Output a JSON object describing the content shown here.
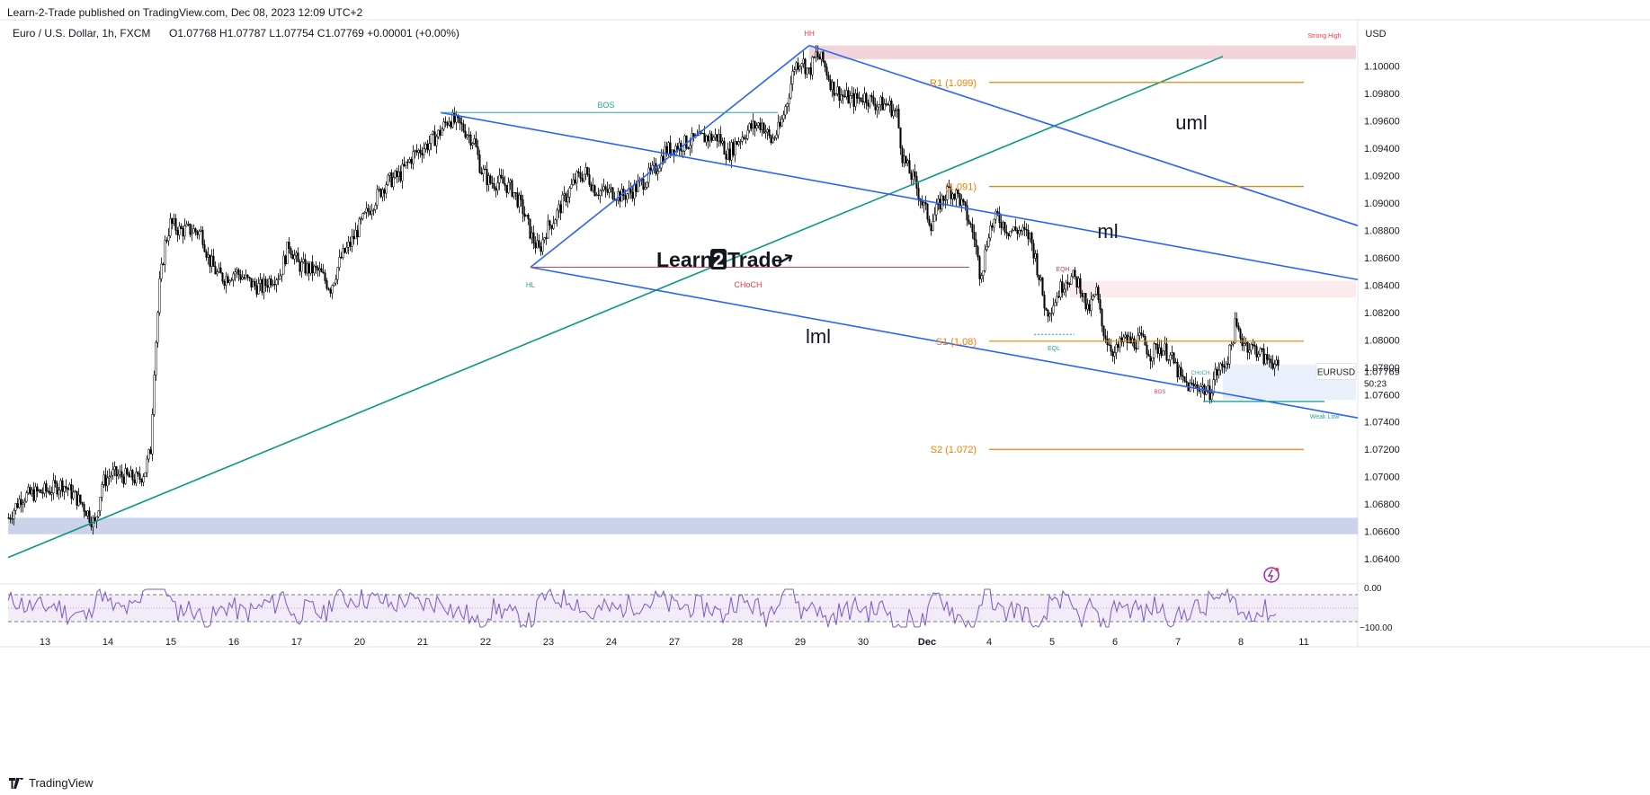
{
  "header": {
    "published": "Learn-2-Trade published on TradingView.com, Dec 08, 2023 12:09 UTC+2",
    "symbol_desc": "Euro / U.S. Dollar, 1h, FXCM",
    "ohlc": "O1.07768 H1.07787 L1.07754 C1.07769 +0.00001 (+0.00%)",
    "currency": "USD"
  },
  "footer": {
    "brand": "TradingView",
    "brand_icon": "tradingview-logo-icon"
  },
  "watermark": {
    "text_left": "Learn",
    "digit": "2",
    "text_right": "Trade",
    "arrow_icon": "arrow-icon"
  },
  "chart_data": {
    "type": "candlestick",
    "symbol": "EURUSD",
    "timeframe": "1h",
    "last_price": "1.07769",
    "countdown": "50:23",
    "y_range": [
      1.0625,
      1.102
    ],
    "y_ticks": [
      "1.10000",
      "1.09800",
      "1.09600",
      "1.09400",
      "1.09200",
      "1.09000",
      "1.08800",
      "1.08600",
      "1.08400",
      "1.08200",
      "1.08000",
      "1.07800",
      "1.07600",
      "1.07400",
      "1.07200",
      "1.07000",
      "1.06800",
      "1.06600",
      "1.06400"
    ],
    "x_ticks": [
      "13",
      "14",
      "15",
      "16",
      "17",
      "20",
      "21",
      "22",
      "23",
      "24",
      "27",
      "28",
      "29",
      "30",
      "Dec",
      "4",
      "5",
      "6",
      "7",
      "8",
      "11"
    ],
    "price_path": [
      [
        0,
        1.067
      ],
      [
        14,
        1.0685
      ],
      [
        30,
        1.0688
      ],
      [
        45,
        1.069
      ],
      [
        60,
        1.0695
      ],
      [
        82,
        1.068
      ],
      [
        96,
        1.0665
      ],
      [
        104,
        1.0695
      ],
      [
        114,
        1.0702
      ],
      [
        130,
        1.07
      ],
      [
        145,
        1.0698
      ],
      [
        152,
        1.0705
      ],
      [
        158,
        1.072
      ],
      [
        162,
        1.078
      ],
      [
        168,
        1.084
      ],
      [
        174,
        1.087
      ],
      [
        180,
        1.0885
      ],
      [
        190,
        1.088
      ],
      [
        205,
        1.088
      ],
      [
        215,
        1.0878
      ],
      [
        222,
        1.086
      ],
      [
        232,
        1.0848
      ],
      [
        240,
        1.0845
      ],
      [
        252,
        1.085
      ],
      [
        262,
        1.0845
      ],
      [
        272,
        1.084
      ],
      [
        282,
        1.0838
      ],
      [
        292,
        1.0845
      ],
      [
        302,
        1.0848
      ],
      [
        312,
        1.087
      ],
      [
        322,
        1.0855
      ],
      [
        332,
        1.0852
      ],
      [
        345,
        1.085
      ],
      [
        358,
        1.0838
      ],
      [
        370,
        1.086
      ],
      [
        380,
        1.087
      ],
      [
        392,
        1.0885
      ],
      [
        405,
        1.09
      ],
      [
        420,
        1.0915
      ],
      [
        435,
        1.092
      ],
      [
        450,
        1.0935
      ],
      [
        465,
        1.0942
      ],
      [
        478,
        1.095
      ],
      [
        490,
        1.0962
      ],
      [
        505,
        1.0955
      ],
      [
        518,
        1.0945
      ],
      [
        525,
        1.0925
      ],
      [
        535,
        1.0915
      ],
      [
        548,
        1.0915
      ],
      [
        560,
        1.091
      ],
      [
        572,
        1.0895
      ],
      [
        582,
        1.0875
      ],
      [
        590,
        1.0865
      ],
      [
        598,
        1.088
      ],
      [
        608,
        1.089
      ],
      [
        620,
        1.0905
      ],
      [
        632,
        1.0918
      ],
      [
        642,
        1.0922
      ],
      [
        652,
        1.091
      ],
      [
        662,
        1.0908
      ],
      [
        672,
        1.0908
      ],
      [
        682,
        1.0905
      ],
      [
        692,
        1.0908
      ],
      [
        705,
        1.0915
      ],
      [
        720,
        1.0925
      ],
      [
        730,
        1.0938
      ],
      [
        745,
        1.0942
      ],
      [
        760,
        1.0945
      ],
      [
        775,
        1.0948
      ],
      [
        790,
        1.0948
      ],
      [
        800,
        1.0935
      ],
      [
        810,
        1.0945
      ],
      [
        825,
        1.0955
      ],
      [
        838,
        1.0958
      ],
      [
        848,
        1.0945
      ],
      [
        858,
        1.0955
      ],
      [
        866,
        1.0975
      ],
      [
        874,
        1.1
      ],
      [
        882,
        1.1005
      ],
      [
        890,
        1.0995
      ],
      [
        898,
        1.1008
      ],
      [
        906,
        1.1003
      ],
      [
        916,
        1.0985
      ],
      [
        928,
        1.0978
      ],
      [
        940,
        1.0975
      ],
      [
        952,
        1.0978
      ],
      [
        965,
        1.0972
      ],
      [
        978,
        1.0972
      ],
      [
        988,
        1.0965
      ],
      [
        994,
        1.0935
      ],
      [
        1000,
        1.0925
      ],
      [
        1008,
        1.0915
      ],
      [
        1016,
        1.09
      ],
      [
        1026,
        1.0885
      ],
      [
        1036,
        1.09
      ],
      [
        1046,
        1.091
      ],
      [
        1056,
        1.0905
      ],
      [
        1066,
        1.089
      ],
      [
        1074,
        1.0875
      ],
      [
        1080,
        1.085
      ],
      [
        1084,
        1.0855
      ],
      [
        1090,
        1.088
      ],
      [
        1100,
        1.089
      ],
      [
        1112,
        1.088
      ],
      [
        1124,
        1.088
      ],
      [
        1136,
        1.0875
      ],
      [
        1142,
        1.086
      ],
      [
        1148,
        1.084
      ],
      [
        1154,
        1.082
      ],
      [
        1160,
        1.0825
      ],
      [
        1168,
        1.0835
      ],
      [
        1176,
        1.0845
      ],
      [
        1184,
        1.0845
      ],
      [
        1192,
        1.084
      ],
      [
        1200,
        1.082
      ],
      [
        1210,
        1.0835
      ],
      [
        1216,
        1.081
      ],
      [
        1222,
        1.08
      ],
      [
        1230,
        1.079
      ],
      [
        1240,
        1.08
      ],
      [
        1250,
        1.0798
      ],
      [
        1260,
        1.08
      ],
      [
        1270,
        1.079
      ],
      [
        1280,
        1.0795
      ],
      [
        1290,
        1.079
      ],
      [
        1298,
        1.078
      ],
      [
        1305,
        1.077
      ],
      [
        1315,
        1.0765
      ],
      [
        1325,
        1.0767
      ],
      [
        1335,
        1.076
      ],
      [
        1342,
        1.0775
      ],
      [
        1350,
        1.078
      ],
      [
        1358,
        1.079
      ],
      [
        1364,
        1.081
      ],
      [
        1372,
        1.08
      ],
      [
        1380,
        1.0795
      ],
      [
        1390,
        1.0792
      ],
      [
        1398,
        1.0785
      ],
      [
        1404,
        1.0787
      ],
      [
        1412,
        1.0777
      ]
    ],
    "levels": [
      {
        "label": "R1 (1.099)",
        "price": 1.0988,
        "color": "#f57c00"
      },
      {
        "label": "(1.091)",
        "price": 1.0912,
        "color": "#f57c00"
      },
      {
        "label": "S1 (1.08)",
        "price": 1.0799,
        "color": "#f57c00"
      },
      {
        "label": "S2 (1.072)",
        "price": 1.072,
        "color": "#f57c00"
      }
    ],
    "annotations": {
      "hh": "HH",
      "hl": "HL",
      "bos": "BOS",
      "bos_small": "BOS",
      "choch": "CHoCH",
      "choch_small": "CHoCH",
      "eqh": "EQH",
      "eql": "EQL",
      "strong_high": "Strong High",
      "weak_low": "Weak Low",
      "uml": "uml",
      "ml": "ml",
      "lml": "lml"
    },
    "rsi": {
      "ticks": [
        "0.00",
        "−100.00"
      ]
    },
    "colors": {
      "pitchfork": "#2962ff",
      "trendline": "#089981",
      "choch_line": "#f23645",
      "zone_red": "#e6b8c0",
      "zone_blue": "#c5cde8",
      "candle": "#000000",
      "rsi": "#7e57c2"
    }
  }
}
